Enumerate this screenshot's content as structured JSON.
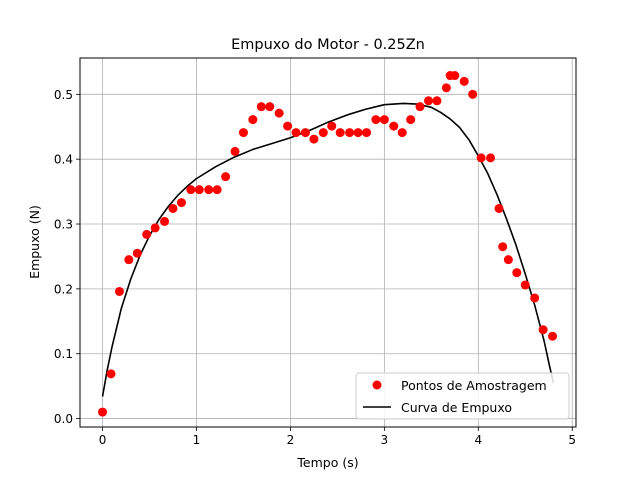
{
  "chart_data": {
    "type": "scatter",
    "title": "Empuxo do Motor - 0.25Zn",
    "xlabel": "Tempo (s)",
    "ylabel": "Empuxo (N)",
    "xlim": [
      -0.24,
      5.04
    ],
    "ylim": [
      -0.013,
      0.556
    ],
    "xticks": [
      0,
      1,
      2,
      3,
      4,
      5
    ],
    "yticks": [
      0.0,
      0.1,
      0.2,
      0.3,
      0.4,
      0.5
    ],
    "xtick_labels": [
      "0",
      "1",
      "2",
      "3",
      "4",
      "5"
    ],
    "ytick_labels": [
      "0.0",
      "0.1",
      "0.2",
      "0.3",
      "0.4",
      "0.5"
    ],
    "grid": true,
    "legend_position": "bottom-right",
    "series": [
      {
        "name": "Pontos de Amostragem",
        "kind": "scatter",
        "color": "#ff0000",
        "x": [
          0.0,
          0.09,
          0.18,
          0.28,
          0.37,
          0.47,
          0.56,
          0.66,
          0.75,
          0.84,
          0.94,
          1.03,
          1.13,
          1.22,
          1.31,
          1.41,
          1.5,
          1.6,
          1.69,
          1.78,
          1.88,
          1.97,
          2.06,
          2.16,
          2.25,
          2.35,
          2.44,
          2.53,
          2.63,
          2.72,
          2.81,
          2.91,
          3.0,
          3.1,
          3.19,
          3.28,
          3.38,
          3.47,
          3.56,
          3.66,
          3.7,
          3.75,
          3.85,
          3.94,
          4.03,
          4.13,
          4.22,
          4.26,
          4.32,
          4.41,
          4.5,
          4.6,
          4.69,
          4.79
        ],
        "y": [
          0.01,
          0.069,
          0.196,
          0.245,
          0.255,
          0.284,
          0.294,
          0.304,
          0.324,
          0.333,
          0.353,
          0.353,
          0.353,
          0.353,
          0.373,
          0.412,
          0.441,
          0.461,
          0.481,
          0.481,
          0.471,
          0.451,
          0.441,
          0.441,
          0.431,
          0.441,
          0.451,
          0.441,
          0.441,
          0.441,
          0.441,
          0.461,
          0.461,
          0.451,
          0.441,
          0.461,
          0.481,
          0.49,
          0.49,
          0.51,
          0.529,
          0.529,
          0.52,
          0.5,
          0.402,
          0.402,
          0.324,
          0.265,
          0.245,
          0.225,
          0.206,
          0.186,
          0.137,
          0.127
        ]
      },
      {
        "name": "Curva de Empuxo",
        "kind": "line",
        "color": "#000000",
        "x": [
          0.0,
          0.05,
          0.1,
          0.2,
          0.3,
          0.4,
          0.5,
          0.6,
          0.7,
          0.8,
          0.9,
          1.0,
          1.2,
          1.4,
          1.6,
          1.8,
          2.0,
          2.2,
          2.4,
          2.6,
          2.8,
          3.0,
          3.2,
          3.35,
          3.5,
          3.6,
          3.7,
          3.8,
          3.9,
          4.0,
          4.1,
          4.2,
          4.3,
          4.4,
          4.5,
          4.6,
          4.7,
          4.76,
          4.8
        ],
        "y": [
          0.034,
          0.075,
          0.11,
          0.17,
          0.215,
          0.252,
          0.282,
          0.307,
          0.327,
          0.344,
          0.358,
          0.37,
          0.388,
          0.403,
          0.415,
          0.424,
          0.433,
          0.444,
          0.457,
          0.468,
          0.477,
          0.484,
          0.486,
          0.485,
          0.48,
          0.472,
          0.462,
          0.449,
          0.43,
          0.405,
          0.378,
          0.345,
          0.308,
          0.268,
          0.223,
          0.175,
          0.12,
          0.08,
          0.055
        ]
      }
    ]
  }
}
